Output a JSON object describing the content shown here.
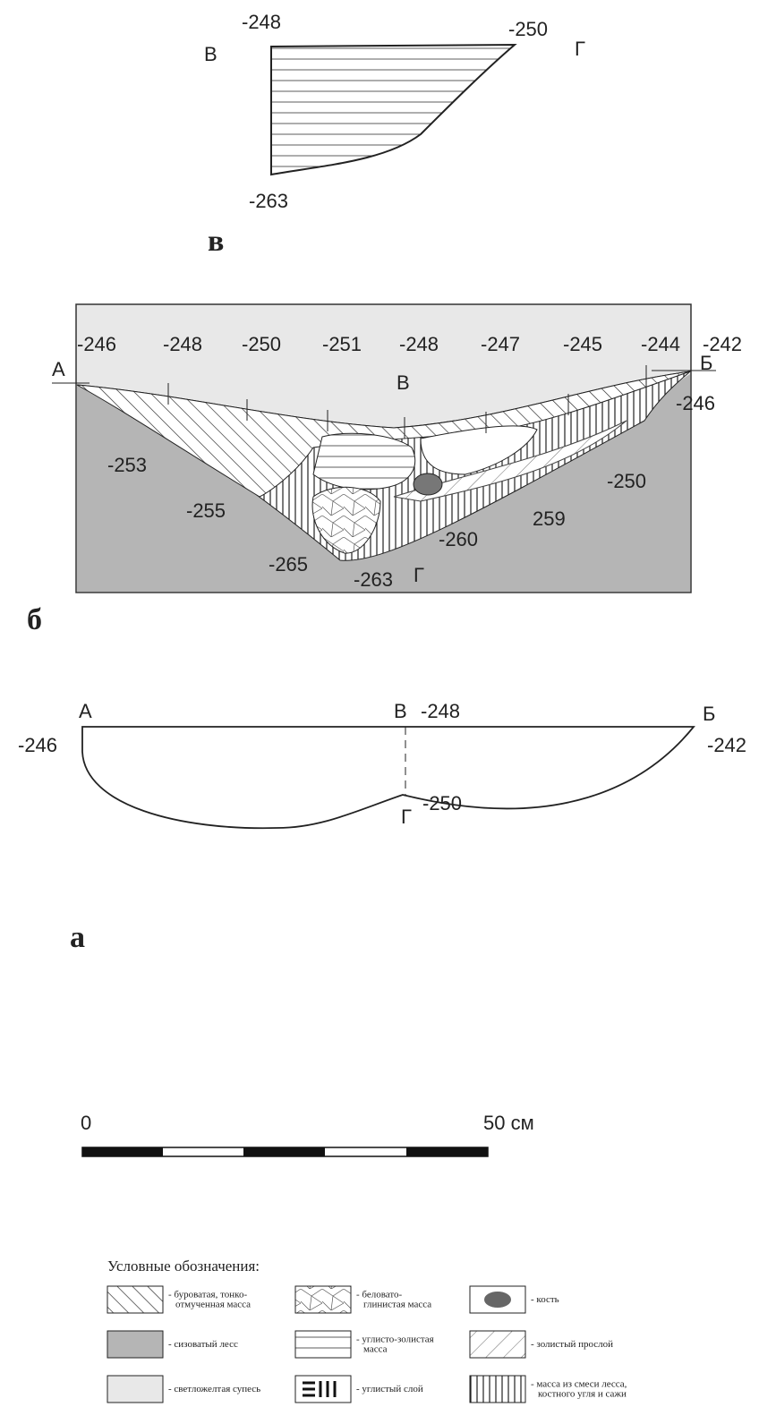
{
  "section_v": {
    "label": "в",
    "points": [
      "В",
      "Г"
    ],
    "depths": [
      "-248",
      "-250",
      "-263"
    ]
  },
  "section_b": {
    "label": "б",
    "points": [
      "А",
      "В",
      "Б",
      "Г"
    ],
    "top_depths": [
      "-246",
      "-248",
      "-250",
      "-251",
      "-248",
      "-247",
      "-245",
      "-244",
      "-242"
    ],
    "side_depths": [
      "-246",
      "-253",
      "-255",
      "-265",
      "-263",
      "-260",
      "259",
      "-250"
    ]
  },
  "section_a": {
    "label": "а",
    "points": [
      "А",
      "В",
      "Б",
      "Г"
    ],
    "depths": [
      "-246",
      "-248",
      "-242",
      "-250"
    ]
  },
  "scale": {
    "start": "0",
    "end": "50 см"
  },
  "legend": {
    "title": "Условные обозначения:",
    "items": [
      {
        "lines": [
          "- буроватая, тонко-",
          "отмученная масса"
        ]
      },
      {
        "lines": [
          "- беловато-",
          "глинистая масса"
        ]
      },
      {
        "lines": [
          "- кость"
        ]
      },
      {
        "lines": [
          "- сизоватый лесс"
        ]
      },
      {
        "lines": [
          "- углисто-золистая",
          "масса"
        ]
      },
      {
        "lines": [
          "- золистый прослой"
        ]
      },
      {
        "lines": [
          "- светложелтая супесь"
        ]
      },
      {
        "lines": [
          "- углистый слой"
        ]
      },
      {
        "lines": [
          "- масса из смеси лесса,",
          "костного угля и сажи"
        ]
      }
    ]
  }
}
